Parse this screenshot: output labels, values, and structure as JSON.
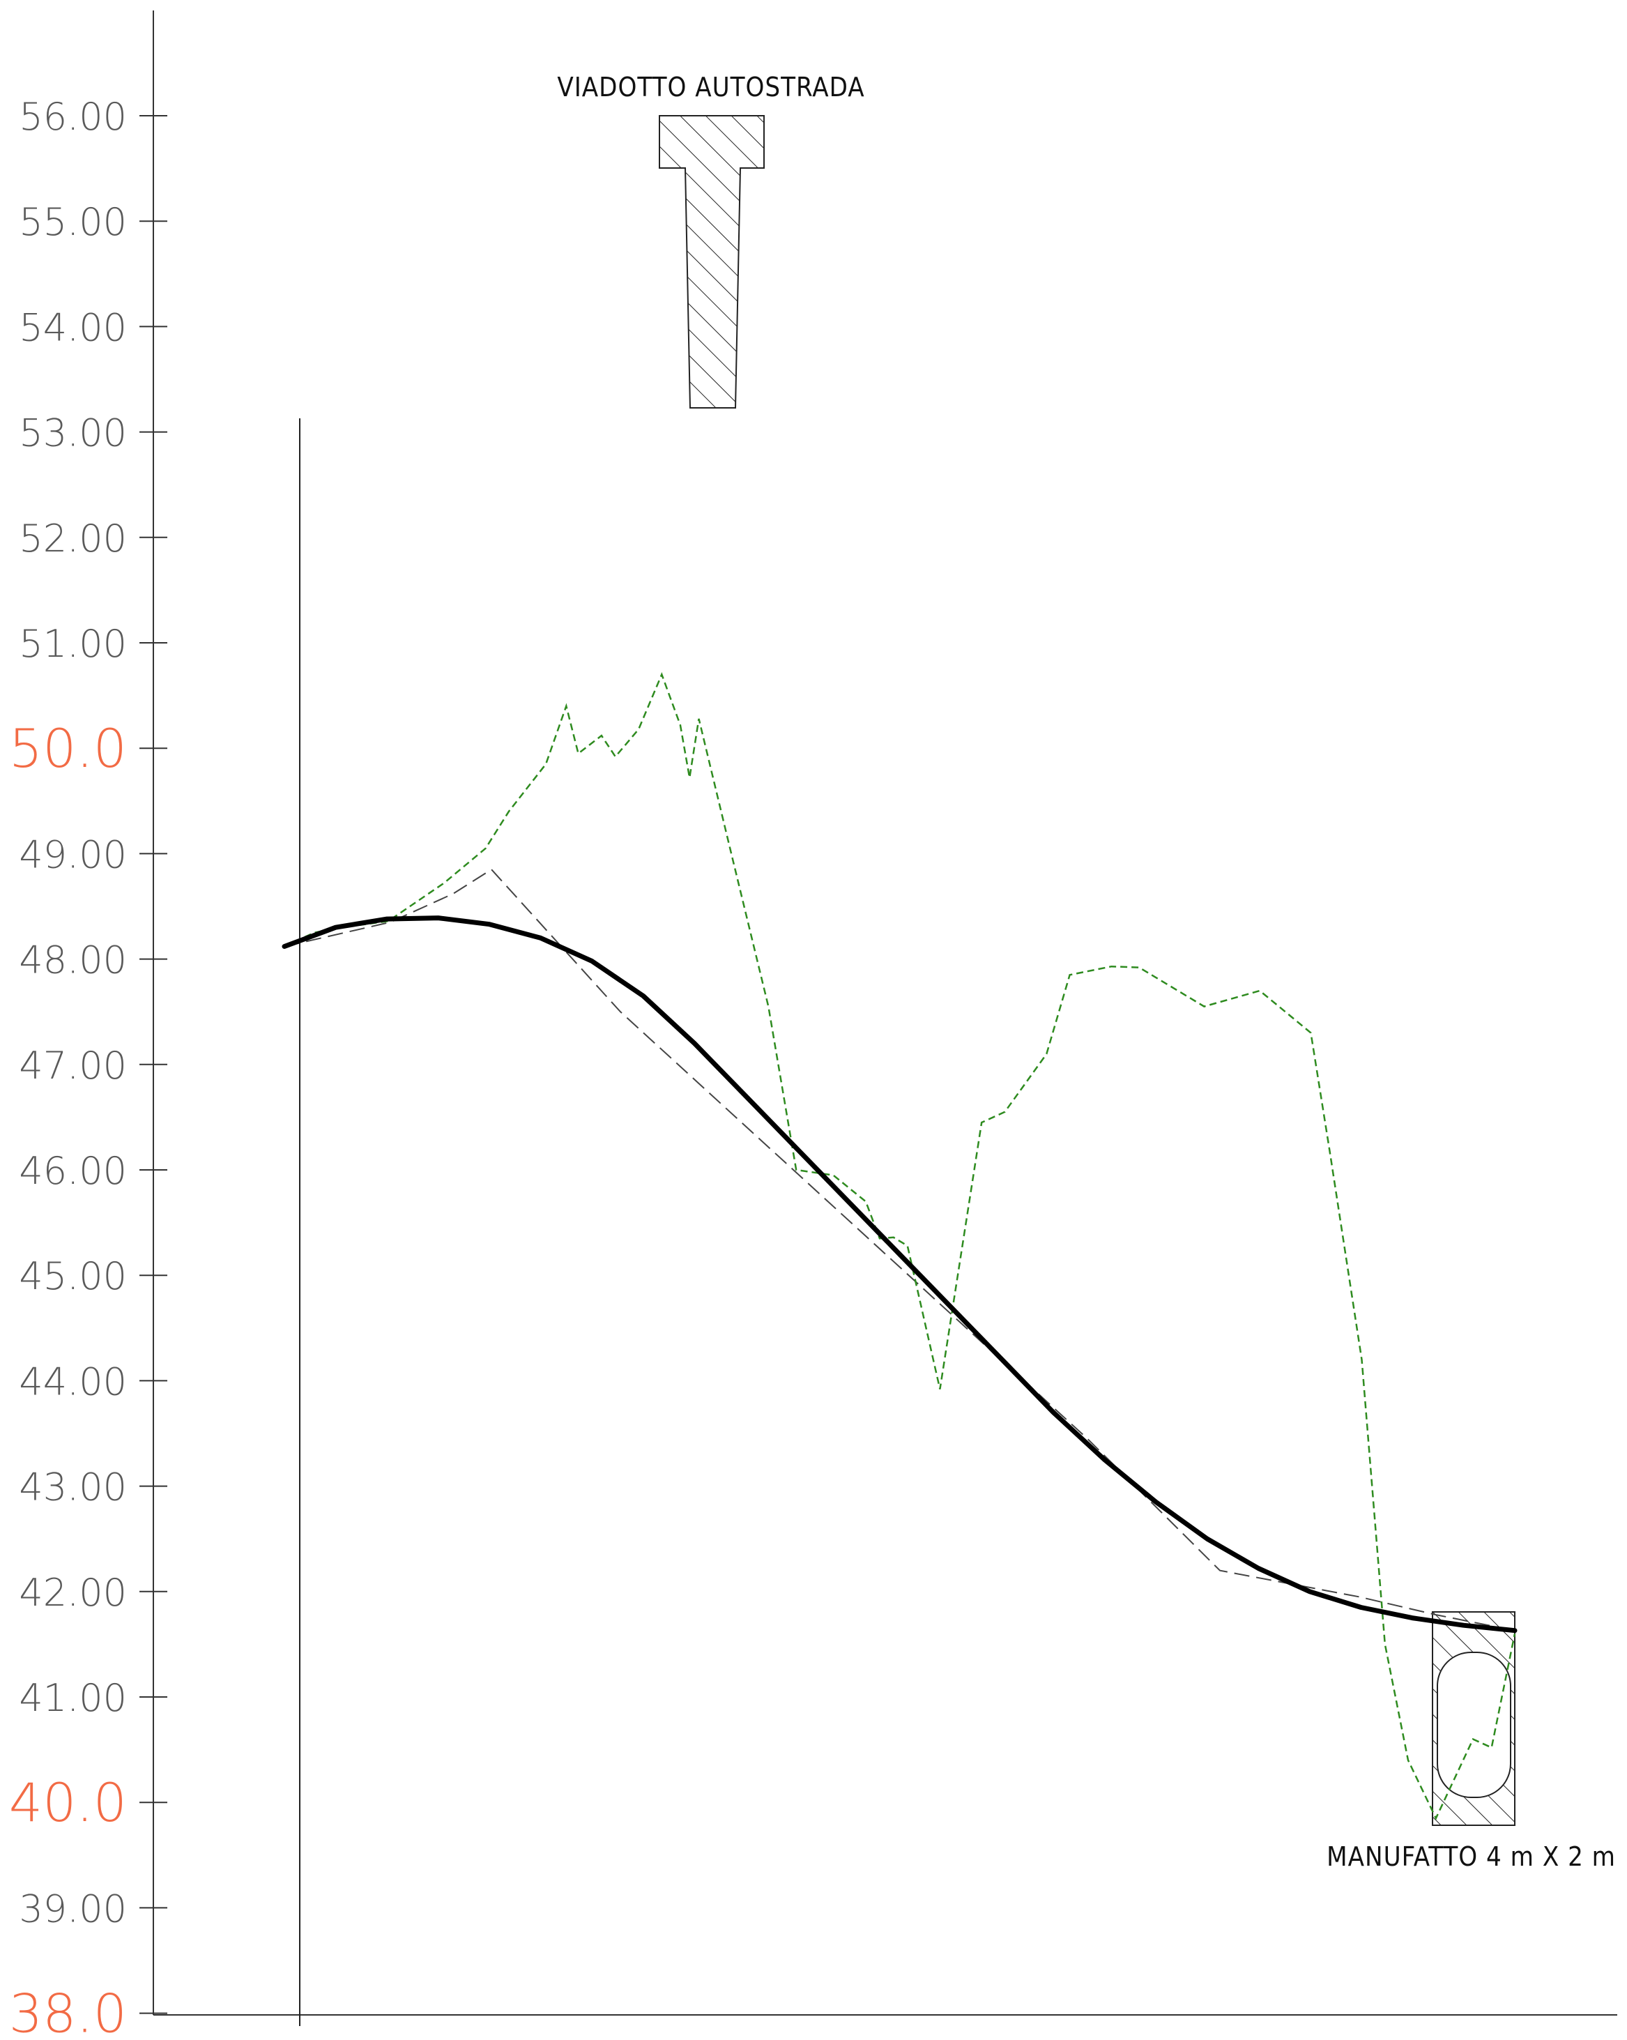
{
  "axis": {
    "ticks": [
      {
        "value": 56,
        "label": "56.00",
        "major": false
      },
      {
        "value": 55,
        "label": "55.00",
        "major": false
      },
      {
        "value": 54,
        "label": "54.00",
        "major": false
      },
      {
        "value": 53,
        "label": "53.00",
        "major": false
      },
      {
        "value": 52,
        "label": "52.00",
        "major": false
      },
      {
        "value": 51,
        "label": "51.00",
        "major": false
      },
      {
        "value": 50,
        "label": "50.0",
        "major": true
      },
      {
        "value": 49,
        "label": "49.00",
        "major": false
      },
      {
        "value": 48,
        "label": "48.00",
        "major": false
      },
      {
        "value": 47,
        "label": "47.00",
        "major": false
      },
      {
        "value": 46,
        "label": "46.00",
        "major": false
      },
      {
        "value": 45,
        "label": "45.00",
        "major": false
      },
      {
        "value": 44,
        "label": "44.00",
        "major": false
      },
      {
        "value": 43,
        "label": "43.00",
        "major": false
      },
      {
        "value": 42,
        "label": "42.00",
        "major": false
      },
      {
        "value": 41,
        "label": "41.00",
        "major": false
      },
      {
        "value": 40,
        "label": "40.0",
        "major": true
      },
      {
        "value": 39,
        "label": "39.00",
        "major": false
      },
      {
        "value": 38,
        "label": "38.0",
        "major": true
      }
    ],
    "major_color": "#f26b45",
    "minor_color": "#5a5a5a"
  },
  "annotations": {
    "viaduct_label": "VIADOTTO AUTOSTRADA",
    "culvert_label": "MANUFATTO 4 m X 2 m"
  },
  "colors": {
    "road_profile": "#000000",
    "ground_profile": "#2e8b1f",
    "old_profile": "#444444"
  },
  "profiles": {
    "road_profile": [
      48.12,
      48.3,
      48.38,
      48.39,
      48.33,
      48.2,
      47.98,
      47.65,
      47.2,
      46.7,
      46.2,
      45.7,
      45.2,
      44.7,
      44.2,
      43.7,
      43.25,
      42.85,
      42.5,
      42.22,
      42.0,
      41.85,
      41.75,
      41.68,
      41.63
    ],
    "ground_profile": [
      48.12,
      48.25,
      48.3,
      48.36,
      48.72,
      49.05,
      49.4,
      49.85,
      50.4,
      49.95,
      50.12,
      49.92,
      50.18,
      50.7,
      50.22,
      49.72,
      50.28,
      49.0,
      47.55,
      46.0,
      45.95,
      45.7,
      45.35,
      45.36,
      45.28,
      43.92,
      46.45,
      46.55,
      47.1,
      47.85,
      47.93,
      47.92,
      47.55,
      47.7,
      47.3,
      46.2,
      44.2,
      41.5,
      40.4,
      39.85,
      40.6,
      40.52,
      41.6
    ],
    "old_profile": [
      48.12,
      48.35,
      48.62,
      48.85,
      47.5,
      43.45,
      42.2,
      41.95,
      41.78,
      41.63
    ]
  }
}
